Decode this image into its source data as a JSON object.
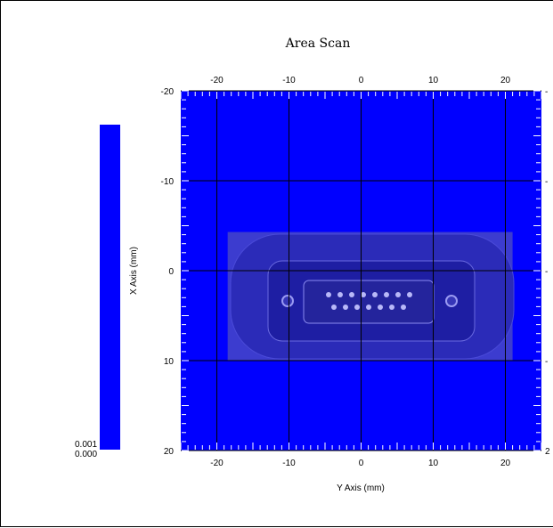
{
  "chart_data": {
    "type": "heatmap",
    "title": "Area Scan",
    "xlabel": "Y Axis (mm)",
    "ylabel": "X Axis (mm)",
    "xlim": [
      -25,
      25
    ],
    "ylim": [
      -20,
      20
    ],
    "x_ticks_bottom": [
      -20,
      -10,
      0,
      10,
      20
    ],
    "x_ticks_top": [
      -20,
      -10,
      0,
      10,
      20
    ],
    "y_ticks_left": [
      -20,
      -10,
      0,
      10,
      20
    ],
    "y_ticks_right_visible": [
      "-",
      "-",
      "-",
      "-",
      "2"
    ],
    "grid": true,
    "colorbar": {
      "min_label": "0.000",
      "max_label": "0.001",
      "color": "#0000ff"
    },
    "overlay_region": {
      "x_range": [
        -18.5,
        21
      ],
      "y_range": [
        -4.3,
        10
      ]
    },
    "colors": {
      "field": "#0000ff",
      "overlay": "#3c3ccf",
      "grid": "#000000"
    }
  }
}
